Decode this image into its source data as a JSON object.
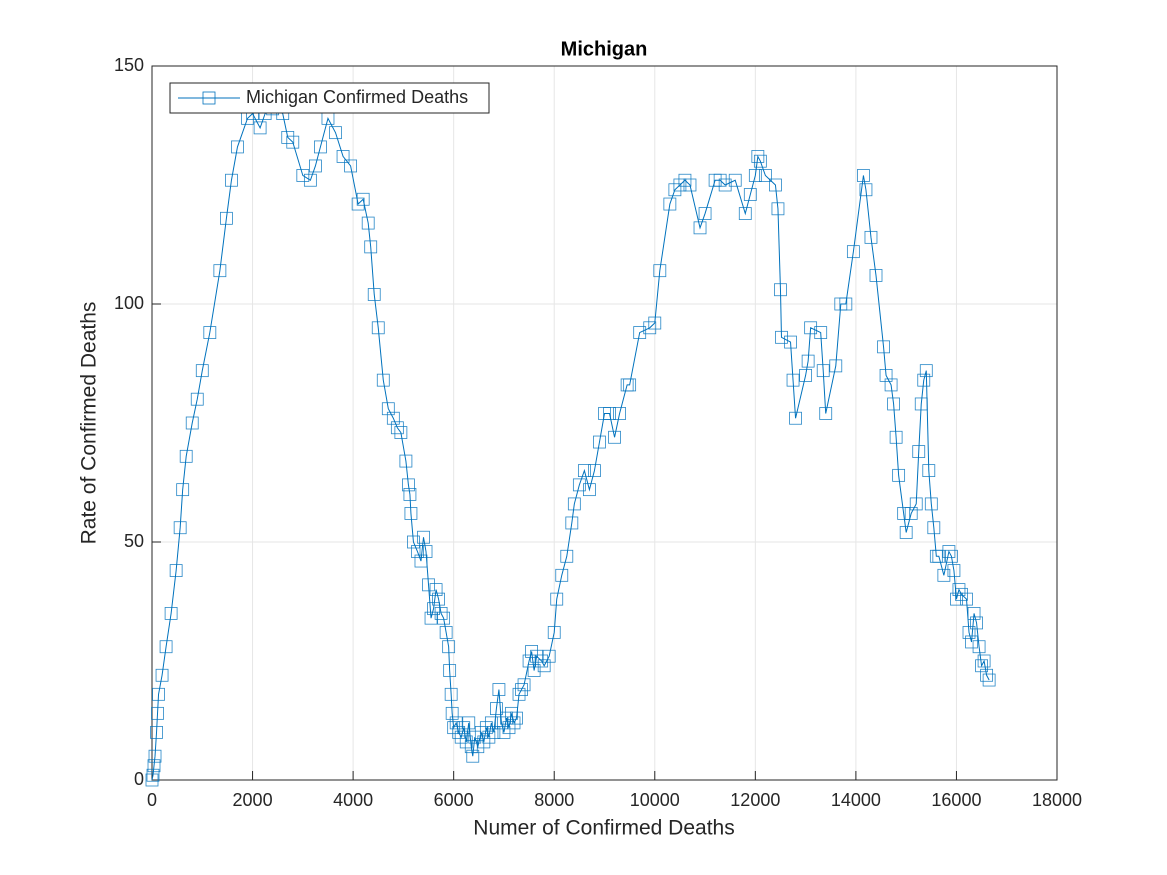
{
  "chart_data": {
    "type": "line",
    "title": "Michigan",
    "x_label": "Numer of Confirmed Deaths",
    "y_label": "Rate of Confirmed Deaths",
    "x": [
      0,
      20,
      40,
      60,
      90,
      110,
      130,
      200,
      280,
      380,
      480,
      560,
      610,
      680,
      800,
      900,
      1000,
      1150,
      1350,
      1480,
      1580,
      1700,
      1900,
      2000,
      2150,
      2250,
      2400,
      2600,
      2700,
      2800,
      3000,
      3150,
      3250,
      3350,
      3500,
      3650,
      3800,
      3950,
      4100,
      4200,
      4300,
      4350,
      4420,
      4500,
      4600,
      4700,
      4800,
      4880,
      4950,
      5050,
      5100,
      5130,
      5150,
      5200,
      5280,
      5350,
      5400,
      5450,
      5500,
      5550,
      5600,
      5650,
      5700,
      5750,
      5800,
      5850,
      5900,
      5920,
      5950,
      5970,
      6000,
      6050,
      6100,
      6150,
      6200,
      6250,
      6300,
      6350,
      6380,
      6420,
      6480,
      6550,
      6600,
      6650,
      6700,
      6750,
      6800,
      6850,
      6900,
      6950,
      7000,
      7050,
      7100,
      7150,
      7200,
      7250,
      7300,
      7350,
      7400,
      7500,
      7550,
      7600,
      7650,
      7750,
      7800,
      7900,
      8000,
      8050,
      8150,
      8250,
      8350,
      8400,
      8500,
      8600,
      8700,
      8800,
      8900,
      9000,
      9100,
      9200,
      9300,
      9450,
      9500,
      9700,
      9900,
      10000,
      10100,
      10300,
      10400,
      10500,
      10600,
      10700,
      10900,
      11000,
      11200,
      11300,
      11400,
      11600,
      11800,
      11900,
      12000,
      12050,
      12100,
      12200,
      12400,
      12450,
      12500,
      12520,
      12700,
      12750,
      12800,
      13000,
      13050,
      13100,
      13300,
      13350,
      13400,
      13600,
      13700,
      13800,
      13950,
      14150,
      14200,
      14300,
      14400,
      14550,
      14600,
      14700,
      14750,
      14800,
      14850,
      14950,
      15000,
      15100,
      15200,
      15250,
      15300,
      15350,
      15400,
      15450,
      15500,
      15550,
      15600,
      15650,
      15750,
      15850,
      15900,
      15950,
      16000,
      16050,
      16100,
      16200,
      16250,
      16300,
      16350,
      16400,
      16450,
      16500,
      16550,
      16600,
      16650
    ],
    "series": [
      {
        "name": "Michigan Confirmed Deaths",
        "color": "#0072bd",
        "marker": "square",
        "values": [
          0,
          1,
          3,
          5,
          10,
          14,
          18,
          22,
          28,
          35,
          44,
          53,
          61,
          68,
          75,
          80,
          86,
          94,
          107,
          118,
          126,
          133,
          139,
          140,
          137,
          140,
          141,
          140,
          135,
          134,
          127,
          126,
          129,
          133,
          139,
          136,
          131,
          129,
          121,
          122,
          117,
          112,
          102,
          95,
          84,
          78,
          76,
          74,
          73,
          67,
          62,
          60,
          56,
          50,
          48,
          46,
          51,
          48,
          41,
          34,
          36,
          40,
          38,
          35,
          34,
          31,
          28,
          23,
          18,
          14,
          11,
          12,
          10,
          9,
          11,
          8,
          12,
          7,
          5,
          9,
          7,
          10,
          8,
          11,
          9,
          12,
          10,
          15,
          19,
          12,
          10,
          13,
          11,
          14,
          12,
          13,
          18,
          19,
          20,
          25,
          27,
          23,
          26,
          25,
          24,
          26,
          31,
          38,
          43,
          47,
          54,
          58,
          62,
          65,
          61,
          65,
          71,
          77,
          77,
          72,
          77,
          83,
          83,
          94,
          95,
          96,
          107,
          121,
          124,
          125,
          126,
          125,
          116,
          119,
          126,
          126,
          125,
          126,
          119,
          123,
          127,
          131,
          130,
          127,
          125,
          120,
          103,
          93,
          92,
          84,
          76,
          85,
          88,
          95,
          94,
          86,
          77,
          87,
          100,
          100,
          111,
          127,
          124,
          114,
          106,
          91,
          85,
          83,
          79,
          72,
          64,
          56,
          52,
          56,
          58,
          69,
          79,
          84,
          86,
          65,
          58,
          53,
          47,
          47,
          43,
          48,
          47,
          44,
          38,
          40,
          39,
          38,
          31,
          29,
          35,
          33,
          28,
          24,
          25,
          22,
          21
        ]
      }
    ],
    "xlim": [
      0,
      18000
    ],
    "ylim": [
      0,
      150
    ],
    "xticks": [
      0,
      2000,
      4000,
      6000,
      8000,
      10000,
      12000,
      14000,
      16000,
      18000
    ],
    "yticks": [
      0,
      50,
      100,
      150
    ],
    "grid": true,
    "legend": "northwest"
  }
}
